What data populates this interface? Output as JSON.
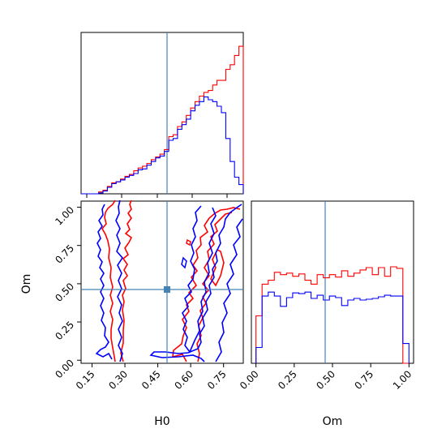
{
  "chart_data": {
    "type": "corner",
    "parameters": [
      "H0",
      "Om"
    ],
    "truth": {
      "H0": 0.5,
      "Om": 0.46
    },
    "truth_color": "#4682b4",
    "series": [
      {
        "color": "#ff0000"
      },
      {
        "color": "#0000ff"
      }
    ],
    "panels": [
      {
        "id": "H0-marginal",
        "type": "histogram-step",
        "x_range": [
          0.1,
          0.84
        ],
        "show_x_tick_labels": false,
        "show_y_tick_labels": false,
        "bin_edges": [
          0.1,
          0.12,
          0.14,
          0.16,
          0.18,
          0.2,
          0.22,
          0.24,
          0.26,
          0.28,
          0.3,
          0.32,
          0.34,
          0.36,
          0.38,
          0.4,
          0.42,
          0.44,
          0.46,
          0.48,
          0.5,
          0.52,
          0.54,
          0.56,
          0.58,
          0.6,
          0.62,
          0.64,
          0.66,
          0.68,
          0.7,
          0.72,
          0.74,
          0.76,
          0.78,
          0.8,
          0.82,
          0.84
        ],
        "counts": [
          [
            0,
            0,
            0,
            0,
            2,
            4,
            8,
            12,
            13,
            16,
            19,
            21,
            25,
            28,
            30,
            33,
            37,
            40,
            43,
            48,
            62,
            64,
            73,
            78,
            85,
            93,
            100,
            106,
            110,
            112,
            118,
            123,
            123,
            135,
            140,
            150,
            160
          ],
          [
            0,
            0,
            0,
            0,
            1,
            3,
            7,
            11,
            13,
            15,
            18,
            20,
            22,
            26,
            27,
            31,
            35,
            39,
            41,
            46,
            58,
            60,
            70,
            75,
            81,
            90,
            96,
            100,
            105,
            102,
            100,
            95,
            88,
            60,
            35,
            18,
            10
          ]
        ]
      },
      {
        "id": "H0-Om-contour",
        "type": "contour",
        "x_range": [
          0.1,
          0.84
        ],
        "y_range": [
          -0.02,
          1.04
        ],
        "x_ticks": [
          "0.15",
          "0.30",
          "0.45",
          "0.60",
          "0.75"
        ],
        "y_ticks": [
          "0.00",
          "0.25",
          "0.50",
          "0.75",
          "1.00"
        ],
        "xlabel": "H0",
        "ylabel": "Om"
      },
      {
        "id": "Om-marginal",
        "type": "histogram-step",
        "x_range": [
          -0.03,
          1.03
        ],
        "x_ticks": [
          "0.00",
          "0.25",
          "0.50",
          "0.75",
          "1.00"
        ],
        "xlabel": "Om",
        "bin_edges": [
          0.0,
          0.04,
          0.08,
          0.12,
          0.16,
          0.2,
          0.24,
          0.28,
          0.32,
          0.36,
          0.4,
          0.44,
          0.48,
          0.52,
          0.56,
          0.6,
          0.64,
          0.68,
          0.72,
          0.76,
          0.8,
          0.84,
          0.88,
          0.92,
          0.96,
          1.0
        ],
        "counts": [
          [
            60,
            100,
            105,
            115,
            112,
            114,
            110,
            113,
            105,
            100,
            112,
            108,
            112,
            109,
            117,
            110,
            114,
            118,
            121,
            112,
            121,
            110,
            122,
            120,
            0
          ],
          [
            20,
            85,
            90,
            85,
            72,
            83,
            89,
            88,
            90,
            82,
            86,
            80,
            85,
            83,
            73,
            80,
            82,
            80,
            81,
            82,
            84,
            86,
            85,
            85,
            25
          ]
        ]
      }
    ]
  }
}
